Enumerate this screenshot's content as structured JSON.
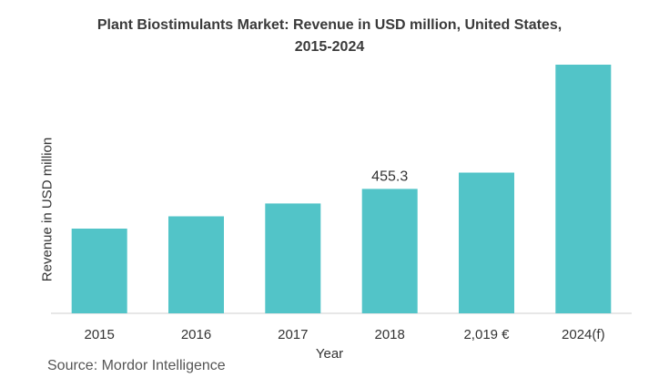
{
  "chart_data": {
    "type": "bar",
    "title_lines": [
      "Plant Biostimulants Market: Revenue in USD million, United States,",
      "2015-2024"
    ],
    "xlabel": "Year",
    "ylabel": "Revenue in USD million",
    "categories": [
      "2015",
      "2016",
      "2017",
      "2018",
      "2,019 €",
      "2024(f)"
    ],
    "values": [
      310,
      355,
      402,
      455.3,
      515,
      910
    ],
    "data_labels": [
      {
        "category": "2018",
        "text": "455.3"
      }
    ],
    "ylim": [
      0,
      1000
    ],
    "grid": false,
    "legend": "none",
    "bar_color": "#52C4C8",
    "axis_color": "#cfcfcf"
  },
  "source": "Source: Mordor Intelligence"
}
